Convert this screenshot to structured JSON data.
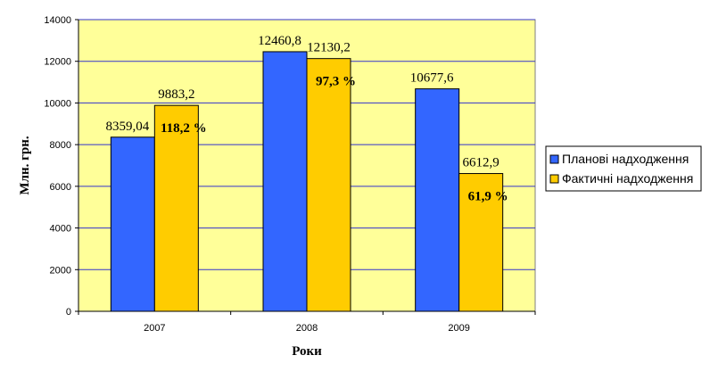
{
  "chart_data": {
    "type": "bar",
    "categories": [
      "2007",
      "2008",
      "2009"
    ],
    "series": [
      {
        "name": "Планові надходження",
        "color": "#3366FF",
        "values": [
          8359.04,
          12460.8,
          10677.6
        ],
        "labels": [
          "8359,04",
          "12460,8",
          "10677,6"
        ]
      },
      {
        "name": "Фактичні надходження",
        "color": "#FFCC00",
        "values": [
          9883.2,
          12130.2,
          6612.9
        ],
        "labels": [
          "9883,2",
          "12130,2",
          "6612,9"
        ]
      }
    ],
    "percent_labels": [
      "118,2 %",
      "97,3 %",
      "61,9 %"
    ],
    "xlabel": "Роки",
    "ylabel": "Млн. грн.",
    "ylim": [
      0,
      14000
    ],
    "yticks": [
      "0",
      "2000",
      "4000",
      "6000",
      "8000",
      "10000",
      "12000",
      "14000"
    ],
    "plot_background": "#FFFF99",
    "gridline_color": "#3333CC",
    "grid": true,
    "legend_position": "right"
  }
}
